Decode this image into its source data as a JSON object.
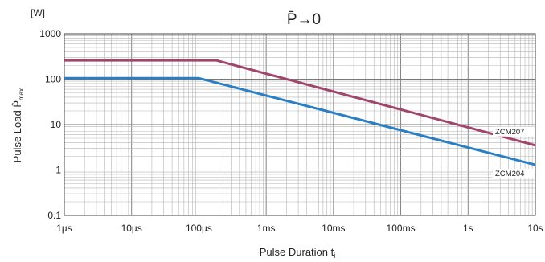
{
  "chart_data": {
    "type": "line",
    "title": "P̄→0",
    "xlabel": "Pulse Duration t",
    "xlabel_subscript": "i",
    "ylabel": "Pulse Load P̂",
    "ylabel_subscript": "max.",
    "yunit": "[W]",
    "x_scale": "log",
    "y_scale": "log",
    "xlim": [
      1e-06,
      10
    ],
    "ylim": [
      0.1,
      1000
    ],
    "x_ticks": [
      {
        "value": 1e-06,
        "label": "1µs"
      },
      {
        "value": 1e-05,
        "label": "10µs"
      },
      {
        "value": 0.0001,
        "label": "100µs"
      },
      {
        "value": 0.001,
        "label": "1ms"
      },
      {
        "value": 0.01,
        "label": "10ms"
      },
      {
        "value": 0.1,
        "label": "100ms"
      },
      {
        "value": 1,
        "label": "1s"
      },
      {
        "value": 10,
        "label": "10s"
      }
    ],
    "y_ticks": [
      {
        "value": 0.1,
        "label": "0.1"
      },
      {
        "value": 1,
        "label": "1"
      },
      {
        "value": 10,
        "label": "10"
      },
      {
        "value": 100,
        "label": "100"
      },
      {
        "value": 1000,
        "label": "1000"
      }
    ],
    "grid": true,
    "series": [
      {
        "name": "ZCM207",
        "color": "#a0466b",
        "points": [
          [
            1e-06,
            260
          ],
          [
            0.00018,
            260
          ],
          [
            10,
            3.5
          ]
        ]
      },
      {
        "name": "ZCM204",
        "color": "#2a7fc4",
        "points": [
          [
            1e-06,
            105
          ],
          [
            0.0001,
            105
          ],
          [
            10,
            1.3
          ]
        ]
      }
    ]
  }
}
